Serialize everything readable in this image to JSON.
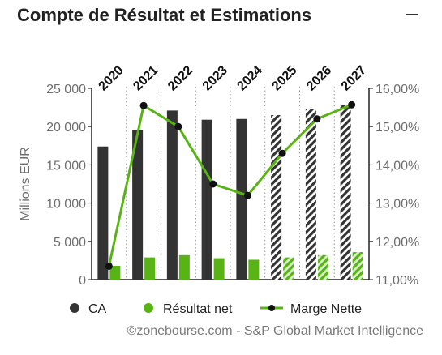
{
  "header": {
    "title": "Compte de Résultat et Estimations",
    "collapse_icon": "minus-icon"
  },
  "chart_data": {
    "type": "bar",
    "categories": [
      "2020",
      "2021",
      "2022",
      "2023",
      "2024",
      "2025",
      "2026",
      "2027"
    ],
    "estimate_from": "2025",
    "ylabel": "Millions EUR",
    "ylim": [
      0,
      25000
    ],
    "yticks": [
      "0",
      "5 000",
      "10 000",
      "15 000",
      "20 000",
      "25 000"
    ],
    "y2lim": [
      11.0,
      16.0
    ],
    "y2ticks": [
      "11,00%",
      "12,00%",
      "13,00%",
      "14,00%",
      "15,00%",
      "16,00%"
    ],
    "grid": false,
    "legend_position": "bottom",
    "series": [
      {
        "name": "CA",
        "kind": "bar",
        "axis": "left",
        "color": "#333333",
        "values": [
          17400,
          19600,
          22100,
          20900,
          21000,
          21500,
          22300,
          22800
        ]
      },
      {
        "name": "Résultat net",
        "kind": "bar",
        "axis": "left",
        "color": "#58b414",
        "values": [
          1800,
          2900,
          3200,
          2800,
          2600,
          2900,
          3200,
          3600
        ]
      },
      {
        "name": "Marge Nette",
        "kind": "line",
        "axis": "right",
        "color": "#58b414",
        "marker_color": "#111111",
        "values": [
          11.35,
          15.55,
          15.0,
          13.5,
          13.2,
          14.3,
          15.2,
          15.57
        ]
      }
    ]
  },
  "footer": {
    "credit": "©zonebourse.com - S&P Global Market Intelligence"
  }
}
